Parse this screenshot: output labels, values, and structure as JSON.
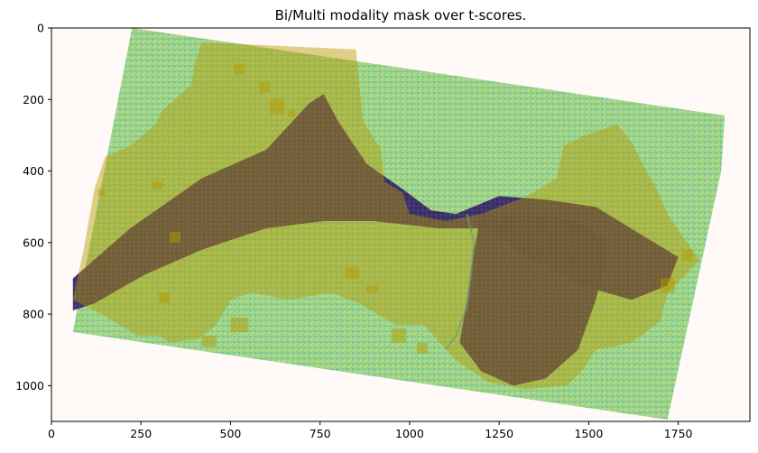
{
  "chart_data": {
    "type": "heatmap",
    "title": "Bi/Multi modality mask over t-scores.",
    "xlabel": "",
    "ylabel": "",
    "xlim": [
      0,
      1950
    ],
    "ylim": [
      1100,
      0
    ],
    "x_ticks": [
      0,
      250,
      500,
      750,
      1000,
      1250,
      1500,
      1750
    ],
    "y_ticks": [
      0,
      200,
      400,
      600,
      800,
      1000
    ],
    "grid": false,
    "colormap": "viridis",
    "mask_color": "#b59a00",
    "background_color": "#fffaf8",
    "footprint": [
      [
        225,
        0
      ],
      [
        1880,
        245
      ],
      [
        1870,
        400
      ],
      [
        1720,
        1095
      ],
      [
        60,
        850
      ],
      [
        225,
        0
      ]
    ],
    "low_regions": [
      {
        "name": "west-basin",
        "points": [
          [
            60,
            700
          ],
          [
            220,
            560
          ],
          [
            420,
            420
          ],
          [
            600,
            340
          ],
          [
            720,
            210
          ],
          [
            760,
            185
          ],
          [
            800,
            260
          ],
          [
            880,
            380
          ],
          [
            980,
            450
          ],
          [
            1060,
            510
          ],
          [
            1130,
            520
          ],
          [
            1250,
            470
          ],
          [
            1380,
            480
          ],
          [
            1520,
            500
          ],
          [
            1650,
            580
          ],
          [
            1750,
            640
          ],
          [
            1720,
            720
          ],
          [
            1620,
            760
          ],
          [
            1480,
            720
          ],
          [
            1330,
            640
          ],
          [
            1220,
            560
          ],
          [
            1080,
            560
          ],
          [
            900,
            540
          ],
          [
            760,
            540
          ],
          [
            600,
            560
          ],
          [
            420,
            620
          ],
          [
            260,
            690
          ],
          [
            120,
            770
          ],
          [
            60,
            790
          ]
        ]
      },
      {
        "name": "east-basin",
        "points": [
          [
            1200,
            520
          ],
          [
            1330,
            520
          ],
          [
            1470,
            540
          ],
          [
            1560,
            600
          ],
          [
            1520,
            760
          ],
          [
            1470,
            900
          ],
          [
            1380,
            980
          ],
          [
            1290,
            1000
          ],
          [
            1200,
            960
          ],
          [
            1140,
            880
          ],
          [
            1160,
            760
          ],
          [
            1180,
            620
          ]
        ]
      }
    ],
    "mask_regions": [
      {
        "name": "north-mask",
        "points": [
          [
            420,
            40
          ],
          [
            850,
            60
          ],
          [
            870,
            260
          ],
          [
            920,
            340
          ],
          [
            930,
            430
          ],
          [
            980,
            460
          ],
          [
            1000,
            520
          ],
          [
            1100,
            540
          ],
          [
            1200,
            520
          ],
          [
            1250,
            500
          ],
          [
            1330,
            470
          ],
          [
            1410,
            420
          ],
          [
            1430,
            330
          ],
          [
            1490,
            300
          ],
          [
            1580,
            270
          ],
          [
            1620,
            320
          ],
          [
            1650,
            380
          ],
          [
            1690,
            450
          ],
          [
            1720,
            520
          ],
          [
            1760,
            580
          ],
          [
            1810,
            650
          ],
          [
            1720,
            740
          ],
          [
            1700,
            820
          ],
          [
            1620,
            880
          ],
          [
            1520,
            900
          ],
          [
            1480,
            960
          ],
          [
            1440,
            1000
          ],
          [
            1320,
            1010
          ],
          [
            1220,
            990
          ],
          [
            1130,
            930
          ],
          [
            1040,
            830
          ],
          [
            960,
            830
          ],
          [
            860,
            770
          ],
          [
            780,
            740
          ],
          [
            660,
            760
          ],
          [
            560,
            740
          ],
          [
            500,
            760
          ],
          [
            460,
            830
          ],
          [
            410,
            870
          ],
          [
            330,
            880
          ],
          [
            300,
            860
          ],
          [
            240,
            860
          ],
          [
            140,
            800
          ],
          [
            60,
            760
          ],
          [
            90,
            620
          ],
          [
            120,
            450
          ],
          [
            150,
            360
          ],
          [
            220,
            330
          ],
          [
            290,
            270
          ],
          [
            310,
            230
          ],
          [
            390,
            160
          ],
          [
            400,
            100
          ]
        ]
      }
    ],
    "mask_blocks": [
      [
        510,
        100,
        30,
        30
      ],
      [
        580,
        150,
        30,
        30
      ],
      [
        610,
        200,
        40,
        40
      ],
      [
        660,
        230,
        20,
        20
      ],
      [
        280,
        430,
        30,
        20
      ],
      [
        130,
        450,
        20,
        20
      ],
      [
        330,
        570,
        30,
        30
      ],
      [
        820,
        670,
        40,
        30
      ],
      [
        880,
        720,
        30,
        20
      ],
      [
        300,
        740,
        30,
        30
      ],
      [
        950,
        840,
        40,
        40
      ],
      [
        1020,
        880,
        30,
        30
      ],
      [
        500,
        810,
        50,
        40
      ],
      [
        420,
        860,
        40,
        30
      ],
      [
        1700,
        700,
        40,
        40
      ],
      [
        1760,
        620,
        30,
        30
      ]
    ]
  }
}
